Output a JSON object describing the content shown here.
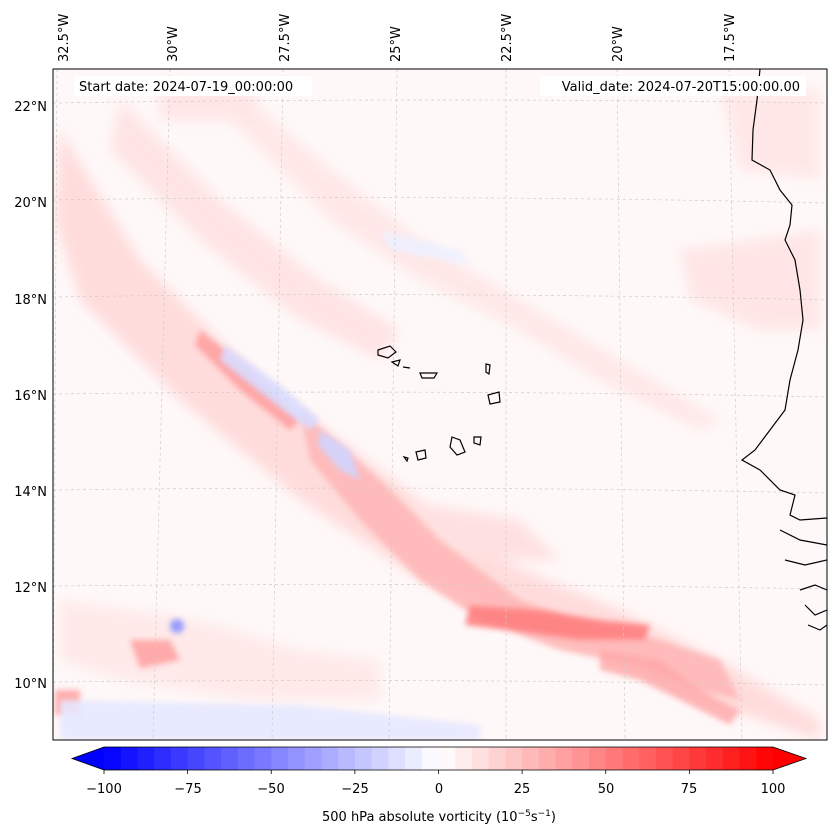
{
  "map": {
    "start_date": "Start date: 2024-07-19_00:00:00",
    "valid_date": "Valid_date: 2024-07-20T15:00:00.00",
    "lon_labels": [
      "32.5°W",
      "30°W",
      "27.5°W",
      "25°W",
      "22.5°W",
      "20°W",
      "17.5°W"
    ],
    "lat_labels": [
      "22°N",
      "20°N",
      "18°N",
      "16°N",
      "14°N",
      "12°N",
      "10°N"
    ],
    "coastline_color": "#000000",
    "gridline_color": "#cccccc"
  },
  "colorbar": {
    "label": "500 hPa absolute vorticity (10",
    "label_exp1": "−5",
    "label_mid": "s",
    "label_exp2": "−1",
    "label_end": ")",
    "ticks": [
      "−100",
      "−75",
      "−50",
      "−25",
      "0",
      "25",
      "50",
      "75",
      "100"
    ],
    "min": -100,
    "max": 100,
    "low_color": "#0000ff",
    "zero_color": "#ffffff",
    "high_color": "#ff0000"
  }
}
